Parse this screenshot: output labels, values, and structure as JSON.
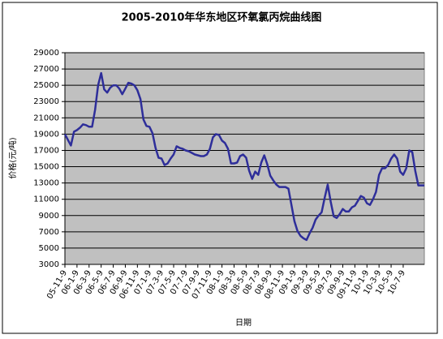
{
  "chart_data": {
    "type": "line",
    "title": "2005-2010年华东地区环氧氯丙烷曲线图",
    "x_label": "日期",
    "y_label": "价格(元/吨)",
    "categories": [
      "05-11-9",
      null,
      null,
      null,
      "06-1-9",
      null,
      null,
      null,
      "06-3-9",
      null,
      null,
      null,
      "06-5-9",
      null,
      null,
      null,
      "06-7-9",
      null,
      null,
      null,
      "06-9-9",
      null,
      null,
      null,
      "06-11-9",
      null,
      null,
      null,
      "07-1-9",
      null,
      null,
      null,
      "07-3-9",
      null,
      null,
      null,
      "07-5-9",
      null,
      null,
      null,
      "07-7-9",
      null,
      null,
      null,
      "07-9-9",
      null,
      null,
      null,
      "07-11-9",
      null,
      null,
      null,
      "08-1-9",
      null,
      null,
      null,
      "08-3-9",
      null,
      null,
      null,
      "08-5-9",
      null,
      null,
      null,
      "08-7-9",
      null,
      null,
      null,
      "08-9-9",
      null,
      null,
      null,
      "08-11-9",
      null,
      null,
      null,
      "09-1-9",
      null,
      null,
      null,
      "09-3-9",
      null,
      null,
      null,
      "09-5-9",
      null,
      null,
      null,
      "09-7-9",
      null,
      null,
      null,
      "09-9-9",
      null,
      null,
      null,
      "09-11-9",
      null,
      null,
      null,
      "10-1-9",
      null,
      null,
      null,
      "10-3-9",
      null,
      null,
      null,
      "10-5-9",
      null,
      null,
      null,
      "10-7-9",
      null,
      null,
      null,
      null,
      null,
      null,
      null
    ],
    "series": [
      {
        "name": "价格",
        "color": "#2e2e9a",
        "values": [
          19000,
          18300,
          17600,
          19300,
          19500,
          19800,
          20200,
          20100,
          19900,
          19900,
          22000,
          25000,
          26500,
          24500,
          24100,
          24700,
          25000,
          25000,
          24600,
          23900,
          24600,
          25300,
          25200,
          25000,
          24400,
          23300,
          20800,
          20000,
          19900,
          19100,
          17300,
          16100,
          16000,
          15200,
          15400,
          16000,
          16500,
          17500,
          17300,
          17200,
          17000,
          16900,
          16700,
          16500,
          16400,
          16300,
          16300,
          16500,
          17200,
          18600,
          19000,
          18900,
          18200,
          17900,
          17200,
          15400,
          15400,
          15500,
          16300,
          16500,
          16100,
          14500,
          13500,
          14400,
          14000,
          15500,
          16400,
          15300,
          13900,
          13300,
          12800,
          12500,
          12500,
          12500,
          12300,
          10300,
          8300,
          7100,
          6500,
          6200,
          6000,
          6800,
          7500,
          8500,
          9000,
          9400,
          11200,
          12800,
          10700,
          8900,
          8700,
          9200,
          9800,
          9500,
          9500,
          10000,
          10200,
          10800,
          11400,
          11200,
          10500,
          10300,
          11000,
          11900,
          14000,
          14800,
          14800,
          15200,
          16000,
          16500,
          16000,
          14400,
          14000,
          14800,
          17000,
          16800,
          14500,
          12700,
          12700,
          12700
        ]
      }
    ],
    "ylim": [
      3000,
      29000
    ],
    "yticks": [
      3000,
      5000,
      7000,
      9000,
      11000,
      13000,
      15000,
      17000,
      19000,
      21000,
      23000,
      25000,
      27000,
      29000
    ],
    "grid": true,
    "plot_background": "#c0c0c0"
  }
}
